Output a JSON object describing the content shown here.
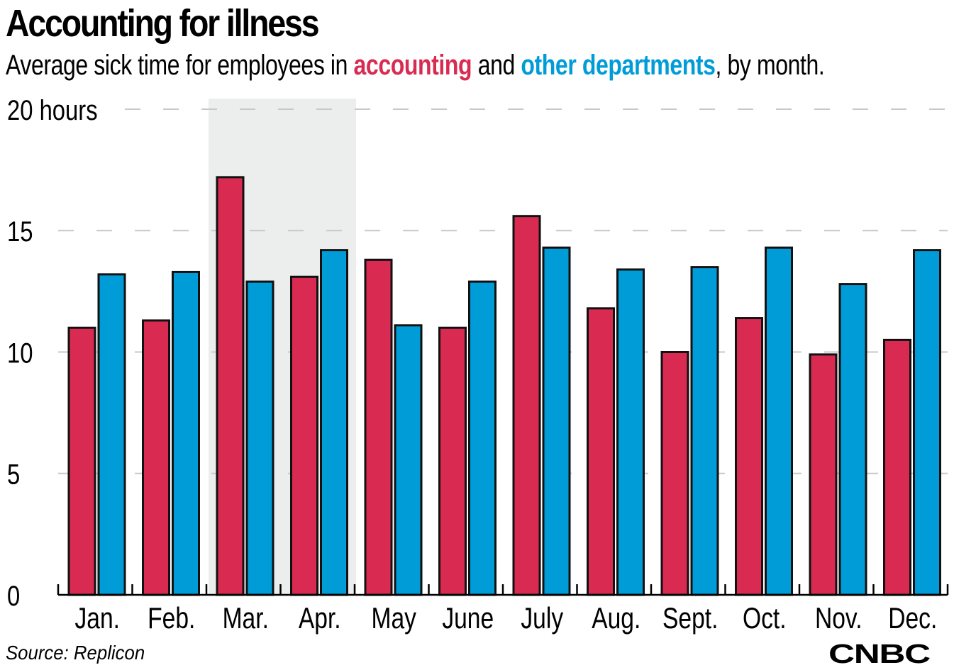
{
  "header": {
    "title": "Accounting for illness",
    "subtitle_pre": "Average sick time for employees in ",
    "subtitle_series1": "accounting",
    "subtitle_mid": " and ",
    "subtitle_series2": "other departments",
    "subtitle_post": ", by month."
  },
  "footer": {
    "source": "Source: Replicon",
    "logo": "CNBC"
  },
  "colors": {
    "accounting": "#d92b51",
    "other_departments": "#009cd8",
    "highlight_band": "#eceeee",
    "gridline": "#c8c8c8"
  },
  "chart_data": {
    "type": "bar",
    "title": "Accounting for illness",
    "subtitle": "Average sick time for employees in accounting and other departments, by month.",
    "xlabel": "",
    "ylabel": "hours",
    "ylim": [
      0,
      20
    ],
    "yticks": [
      0,
      5,
      10,
      15,
      20
    ],
    "ytick_labels": [
      "0",
      "5",
      "10",
      "15",
      "20 hours"
    ],
    "grid": true,
    "categories": [
      "Jan.",
      "Feb.",
      "Mar.",
      "Apr.",
      "May",
      "June",
      "July",
      "Aug.",
      "Sept.",
      "Oct.",
      "Nov.",
      "Dec."
    ],
    "series": [
      {
        "name": "accounting",
        "color": "#d92b51",
        "values": [
          11.0,
          11.3,
          17.2,
          13.1,
          13.8,
          11.0,
          15.6,
          11.8,
          10.0,
          11.4,
          9.9,
          10.5
        ]
      },
      {
        "name": "other departments",
        "color": "#009cd8",
        "values": [
          13.2,
          13.3,
          12.9,
          14.2,
          11.1,
          12.9,
          14.3,
          13.4,
          13.5,
          14.3,
          12.8,
          14.2
        ]
      }
    ],
    "highlighted_categories": [
      "Mar.",
      "Apr."
    ],
    "legend": "in subtitle",
    "source": "Source: Replicon"
  }
}
